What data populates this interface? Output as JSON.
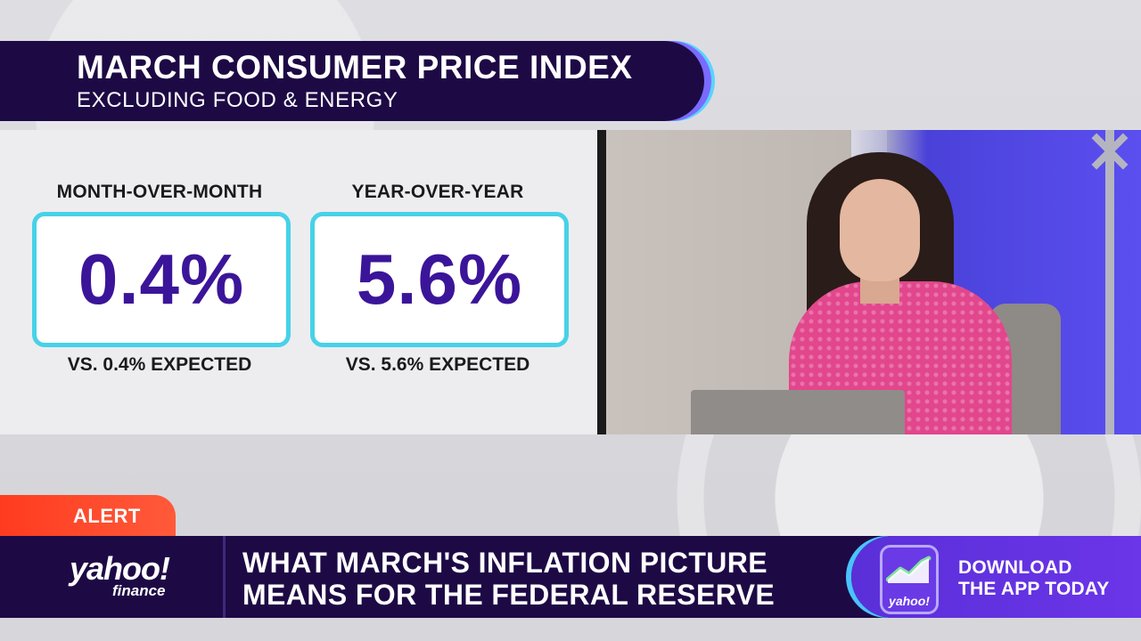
{
  "title": {
    "main": "MARCH CONSUMER PRICE INDEX",
    "subtitle": "EXCLUDING FOOD & ENERGY"
  },
  "stats": [
    {
      "label": "MONTH-OVER-MONTH",
      "value": "0.4%",
      "expected": "VS. 0.4% EXPECTED"
    },
    {
      "label": "YEAR-OVER-YEAR",
      "value": "5.6%",
      "expected": "VS. 5.6% EXPECTED"
    }
  ],
  "alert": {
    "label": "ALERT"
  },
  "logo": {
    "brand": "yahoo!",
    "sub": "finance"
  },
  "headline": {
    "line1": "WHAT MARCH'S INFLATION PICTURE",
    "line2": "MEANS FOR THE FEDERAL RESERVE"
  },
  "promo": {
    "icon_text": "yahoo!",
    "line1": "DOWNLOAD",
    "line2": "THE APP TODAY"
  },
  "colors": {
    "navy": "#1d0a45",
    "purple_value": "#3b1599",
    "cyan_border": "#46d2e8",
    "alert_red": "#ff3b1f",
    "promo_purple": "#5a2fd8"
  },
  "icons": {
    "app_chart": "trend-chart-icon"
  }
}
